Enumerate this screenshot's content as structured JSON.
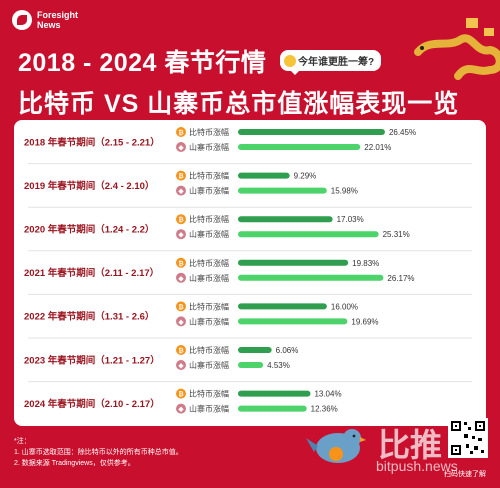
{
  "header": {
    "logo_line1": "Foresight",
    "logo_line2": "News",
    "title_line1": "2018 - 2024 春节行情",
    "title_line2": "比特币 VS 山寨币总市值涨幅表现一览",
    "bubble_text": "今年谁更胜一筹?"
  },
  "chart_data": {
    "type": "bar",
    "orientation": "horizontal",
    "categories": [
      "2018 年春节期间（2.15 - 2.21）",
      "2019 年春节期间（2.4 - 2.10）",
      "2020 年春节期间（1.24 - 2.2）",
      "2021 年春节期间（2.11 - 2.17）",
      "2022 年春节期间（1.31 - 2.6）",
      "2023 年春节期间（1.21 - 1.27）",
      "2024 年春节期间（2.10 - 2.17）"
    ],
    "series": [
      {
        "name": "比特币涨幅",
        "color": "#2f9e4f",
        "values": [
          26.45,
          9.29,
          17.03,
          19.83,
          16.0,
          6.06,
          13.04
        ],
        "labels": [
          "26.45%",
          "9.29%",
          "17.03%",
          "19.83%",
          "16.00%",
          "6.06%",
          "13.04%"
        ]
      },
      {
        "name": "山寨币涨幅",
        "color": "#4cd46a",
        "values": [
          22.01,
          15.98,
          25.31,
          26.17,
          19.69,
          4.53,
          12.36
        ],
        "labels": [
          "22.01%",
          "15.98%",
          "25.31%",
          "26.17%",
          "19.69%",
          "4.53%",
          "12.36%"
        ]
      }
    ]
  },
  "footer": {
    "note_title": "*注：",
    "note_1": "1. 山寨币选取范围：除比特币以外的所有币种总市值。",
    "note_2": "2. 数据来源 Tradingviews，仅供参考。",
    "brand": "比推",
    "brand_url": "bitpush.news",
    "qr_caption": "扫码快速了解"
  }
}
